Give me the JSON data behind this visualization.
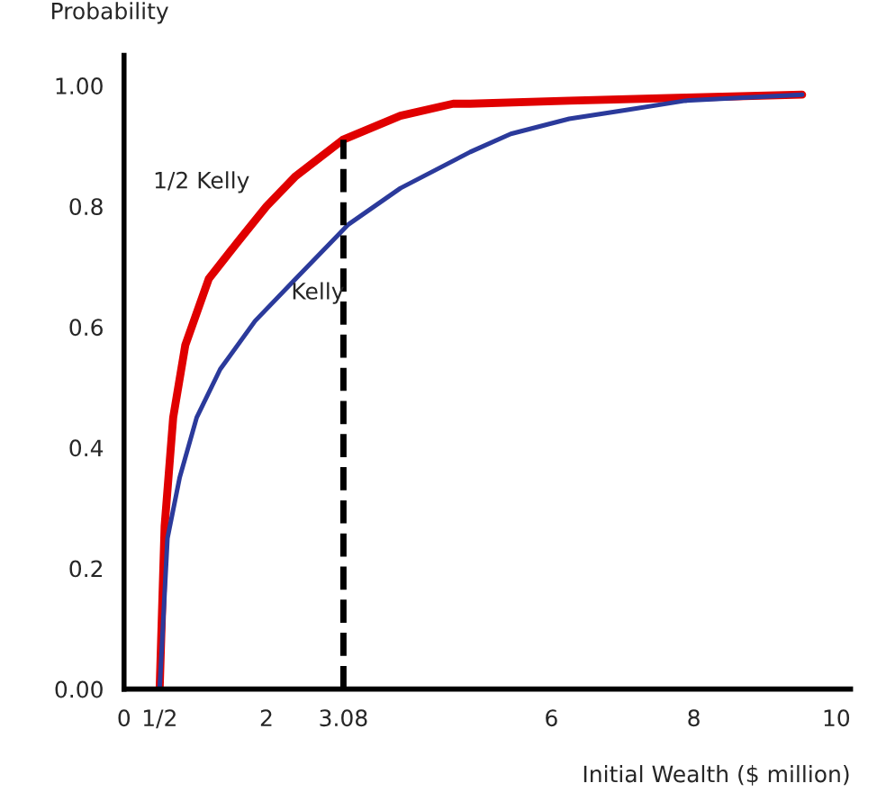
{
  "chart_data": {
    "type": "line",
    "ylabel": "Probability",
    "xlabel": "Initial Wealth ($ million)",
    "xlim": [
      0,
      10.2
    ],
    "ylim": [
      0,
      1.05
    ],
    "xticks": [
      0,
      {
        "value": 0.5,
        "label": "1/2"
      },
      2,
      3.08,
      6,
      8,
      10
    ],
    "yticks": [
      {
        "value": 0,
        "label": "0.00"
      },
      0.2,
      0.4,
      0.6,
      0.8,
      {
        "value": 1,
        "label": "1.00"
      }
    ],
    "grid": false,
    "legend": false,
    "marker": "none",
    "line_style": "solid",
    "series": [
      {
        "name": "1/2 Kelly",
        "color": "#e00000",
        "x": [
          0.5,
          0.57,
          0.69,
          0.86,
          1.19,
          1.59,
          2.0,
          2.41,
          3.07,
          3.88,
          4.62,
          4.86,
          6.25,
          7.88,
          9.52
        ],
        "values": [
          0,
          0.27,
          0.45,
          0.57,
          0.68,
          0.74,
          0.8,
          0.85,
          0.91,
          0.95,
          0.97,
          0.97,
          0.975,
          0.98,
          0.985
        ]
      },
      {
        "name": "Kelly",
        "color": "#2b3a9b",
        "x": [
          0.5,
          0.61,
          0.78,
          1.02,
          1.35,
          1.84,
          2.41,
          3.15,
          3.88,
          4.86,
          5.43,
          6.25,
          7.07,
          7.88,
          8.69,
          9.52
        ],
        "values": [
          0,
          0.25,
          0.35,
          0.45,
          0.53,
          0.61,
          0.68,
          0.77,
          0.83,
          0.89,
          0.92,
          0.945,
          0.96,
          0.975,
          0.98,
          0.985
        ]
      }
    ],
    "ref_lines": [
      {
        "axis": "x",
        "value": 3.08,
        "color": "#000000",
        "line_style": "dashed"
      }
    ]
  }
}
